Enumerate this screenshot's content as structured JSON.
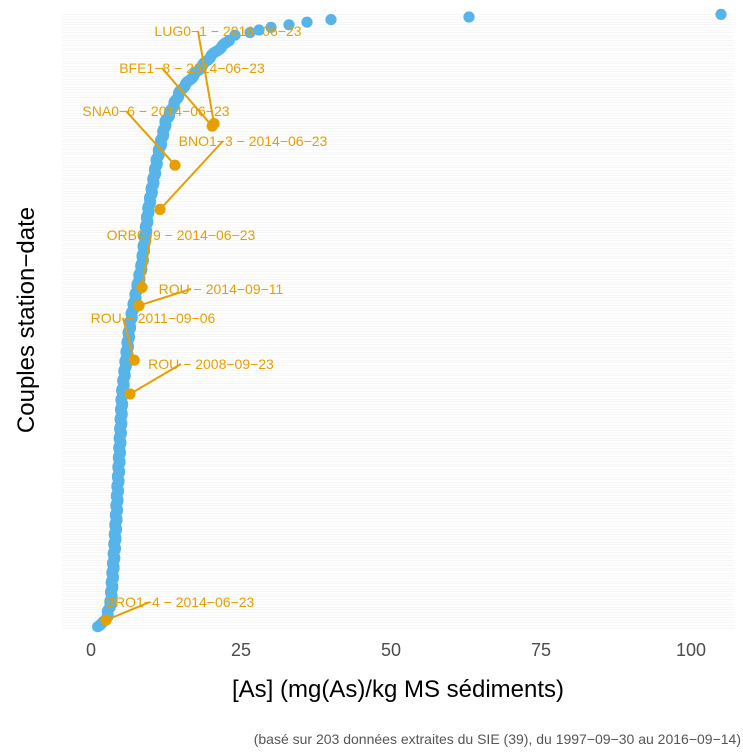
{
  "chart_data": {
    "type": "scatter",
    "title": "",
    "xlabel": "[As] (mg(As)/kg MS sédiments)",
    "ylabel": "Couples station−date",
    "caption": "(basé sur 203 données extraites du SIE (39), du 1997−09−30 au 2016−09−14)",
    "xlim": [
      -4,
      107
    ],
    "ylim": [
      0,
      204
    ],
    "x_ticks": [
      0,
      25,
      50,
      75,
      100
    ],
    "x_tick_labels": [
      "0",
      "25",
      "50",
      "75",
      "100"
    ],
    "grid": true,
    "legend": "none",
    "n_points": 203,
    "curve_keypoints": [
      [
        1,
        0.5
      ],
      [
        2.5,
        3
      ],
      [
        3.3,
        10
      ],
      [
        3.9,
        30
      ],
      [
        4.6,
        60
      ],
      [
        5.2,
        90
      ],
      [
        6.5,
        117
      ],
      [
        8.5,
        140
      ],
      [
        9.5,
        160
      ],
      [
        11,
        180
      ],
      [
        12.5,
        195
      ],
      [
        15,
        207
      ],
      [
        20,
        220
      ],
      [
        23,
        226
      ],
      [
        24,
        228
      ],
      [
        26.5,
        229
      ],
      [
        28,
        230
      ],
      [
        30,
        231
      ],
      [
        33,
        232
      ],
      [
        36,
        233
      ],
      [
        40,
        234
      ],
      [
        63,
        235
      ],
      [
        105,
        236
      ]
    ],
    "highlighted_points": [
      {
        "label": "LUG0−1 − 2016−06−23",
        "x": 20.5,
        "y": 194
      },
      {
        "label": "BFE1−8 − 2014−06−23",
        "x": 20.2,
        "y": 193
      },
      {
        "label": "SNA0−6 − 2014−06−23",
        "x": 14,
        "y": 178
      },
      {
        "label": "BNO1−3 − 2014−06−23",
        "x": 11.5,
        "y": 161
      },
      {
        "label": "ORB0−9 − 2014−06−23",
        "x": 8.5,
        "y": 131
      },
      {
        "label": "ROU − 2014−09−11",
        "x": 8,
        "y": 124
      },
      {
        "label": "ROU − 2011−09−06",
        "x": 7.2,
        "y": 103
      },
      {
        "label": "ROU − 2008−09−23",
        "x": 6.5,
        "y": 90
      },
      {
        "label": "BRO1−4 − 2014−06−23",
        "x": 2.5,
        "y": 3
      }
    ],
    "colors": {
      "points": "#56B4E9",
      "highlight": "#E69F00",
      "panel": "#ffffff",
      "grid": "#eeeeee",
      "text": "#222222",
      "caption": "#555555"
    }
  }
}
